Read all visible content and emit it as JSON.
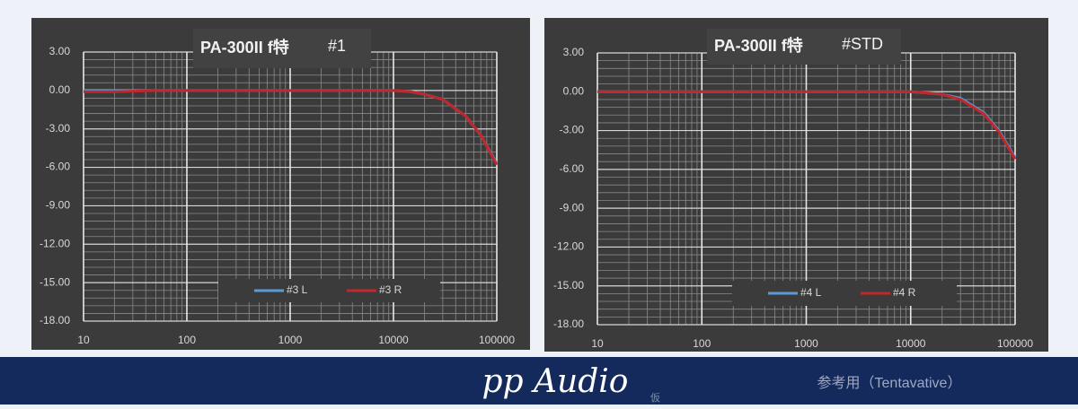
{
  "chart_data": [
    {
      "type": "line",
      "title": "PA-300II f特",
      "subtitle": "#1",
      "log_x": true,
      "grid": true,
      "minor_grid": true,
      "legend": "bottom",
      "x": [
        10,
        20,
        50,
        100,
        200,
        500,
        1000,
        2000,
        5000,
        10000,
        15000,
        20000,
        30000,
        50000,
        70000,
        100000
      ],
      "xlim": [
        10,
        100000
      ],
      "xticks": [
        10,
        100,
        1000,
        10000,
        100000
      ],
      "ylim": [
        -18,
        3
      ],
      "yticks": [
        {
          "value": 3,
          "label": "3.00"
        },
        {
          "value": 0,
          "label": "0.00"
        },
        {
          "value": -3,
          "label": "-3.00"
        },
        {
          "value": -6,
          "label": "-6.00"
        },
        {
          "value": -9,
          "label": "-9.00"
        },
        {
          "value": -12,
          "label": "-12.00"
        },
        {
          "value": -15,
          "label": "-15.00"
        },
        {
          "value": -18,
          "label": "-18.00"
        }
      ],
      "series": [
        {
          "name": "#3 L",
          "color": "#5b9bd5",
          "values": [
            0,
            0,
            0,
            0,
            0,
            0,
            0,
            0,
            0,
            0,
            -0.1,
            -0.3,
            -0.7,
            -2.0,
            -3.5,
            -5.7
          ]
        },
        {
          "name": "#3 R",
          "color": "#c0282d",
          "values": [
            -0.1,
            -0.1,
            0,
            0,
            0,
            0,
            0,
            0,
            0,
            0,
            -0.1,
            -0.3,
            -0.7,
            -2.0,
            -3.5,
            -5.8
          ]
        }
      ]
    },
    {
      "type": "line",
      "title": "PA-300II f特",
      "subtitle": "#STD",
      "log_x": true,
      "grid": true,
      "minor_grid": true,
      "legend": "bottom",
      "x": [
        10,
        20,
        50,
        100,
        200,
        500,
        1000,
        2000,
        5000,
        10000,
        15000,
        20000,
        30000,
        50000,
        70000,
        100000
      ],
      "xlim": [
        10,
        100000
      ],
      "xticks": [
        10,
        100,
        1000,
        10000,
        100000
      ],
      "ylim": [
        -18,
        3
      ],
      "yticks": [
        {
          "value": 3,
          "label": "3.00"
        },
        {
          "value": 0,
          "label": "0.00"
        },
        {
          "value": -3,
          "label": "-3.00"
        },
        {
          "value": -6,
          "label": "-6.00"
        },
        {
          "value": -9,
          "label": "-9.00"
        },
        {
          "value": -12,
          "label": "-12.00"
        },
        {
          "value": -15,
          "label": "-15.00"
        },
        {
          "value": -18,
          "label": "-18.00"
        }
      ],
      "series": [
        {
          "name": "#4 L",
          "color": "#5b9bd5",
          "values": [
            0,
            0,
            0,
            0,
            0,
            0,
            0,
            0,
            0,
            0,
            -0.1,
            -0.2,
            -0.5,
            -1.6,
            -3.0,
            -5.1
          ]
        },
        {
          "name": "#4 R",
          "color": "#c0282d",
          "values": [
            0,
            0,
            0,
            0,
            0,
            0,
            0,
            0,
            0,
            0,
            -0.1,
            -0.2,
            -0.6,
            -1.7,
            -3.1,
            -5.2
          ]
        }
      ]
    }
  ],
  "footer": {
    "brand": "pp Audio",
    "mark": "仮",
    "note": "参考用（Tentavative）"
  }
}
